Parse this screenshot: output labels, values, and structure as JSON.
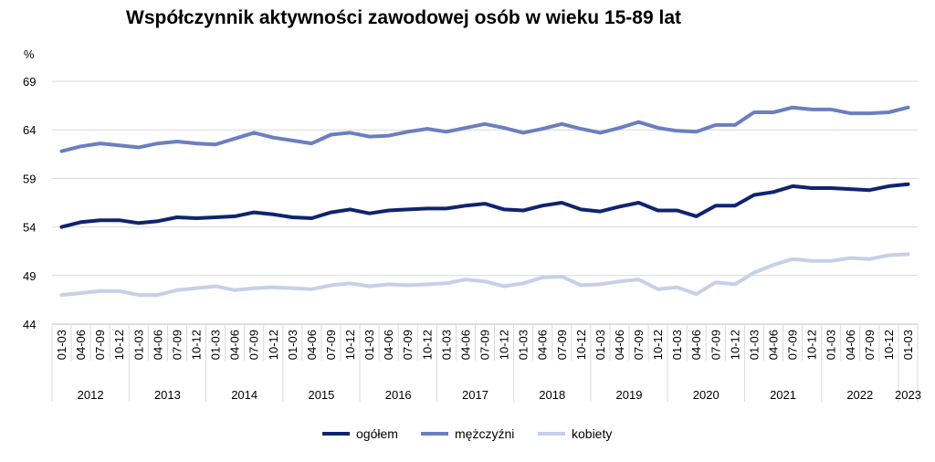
{
  "chart_data": {
    "type": "line",
    "title": "Współczynnik aktywności zawodowej osób w wieku 15-89 lat",
    "ylabel": "%",
    "xlabel": "",
    "ylim": [
      44,
      69
    ],
    "yticks": [
      44,
      49,
      54,
      59,
      64,
      69
    ],
    "grid": "horizontal",
    "legend_position": "bottom",
    "x": [
      "01-03",
      "04-06",
      "07-09",
      "10-12",
      "01-03",
      "04-06",
      "07-09",
      "10-12",
      "01-03",
      "04-06",
      "07-09",
      "10-12",
      "01-03",
      "04-06",
      "07-09",
      "10-12",
      "01-03",
      "04-06",
      "07-09",
      "10-12",
      "01-03",
      "04-06",
      "07-09",
      "10-12",
      "01-03",
      "04-06",
      "07-09",
      "10-12",
      "01-03",
      "04-06",
      "07-09",
      "10-12",
      "01-03",
      "04-06",
      "07-09",
      "10-12",
      "01-03",
      "04-06",
      "07-09",
      "10-12",
      "01-03",
      "04-06",
      "07-09",
      "10-12",
      "01-03"
    ],
    "years": [
      {
        "label": "2012",
        "start": 0,
        "count": 4
      },
      {
        "label": "2013",
        "start": 4,
        "count": 4
      },
      {
        "label": "2014",
        "start": 8,
        "count": 4
      },
      {
        "label": "2015",
        "start": 12,
        "count": 4
      },
      {
        "label": "2016",
        "start": 16,
        "count": 4
      },
      {
        "label": "2017",
        "start": 20,
        "count": 4
      },
      {
        "label": "2018",
        "start": 24,
        "count": 4
      },
      {
        "label": "2019",
        "start": 28,
        "count": 4
      },
      {
        "label": "2020",
        "start": 32,
        "count": 4
      },
      {
        "label": "2021",
        "start": 36,
        "count": 4
      },
      {
        "label": "2022",
        "start": 40,
        "count": 4
      },
      {
        "label": "2023",
        "start": 44,
        "count": 1
      }
    ],
    "series": [
      {
        "name": "ogółem",
        "color": "#0f2470",
        "values": [
          54.0,
          54.5,
          54.7,
          54.7,
          54.4,
          54.6,
          55.0,
          54.9,
          55.0,
          55.1,
          55.5,
          55.3,
          55.0,
          54.9,
          55.5,
          55.8,
          55.4,
          55.7,
          55.8,
          55.9,
          55.9,
          56.2,
          56.4,
          55.8,
          55.7,
          56.2,
          56.5,
          55.8,
          55.6,
          56.1,
          56.5,
          55.7,
          55.7,
          55.1,
          56.2,
          56.2,
          57.3,
          57.6,
          58.2,
          58.0,
          58.0,
          57.9,
          57.8,
          58.2,
          58.4
        ]
      },
      {
        "name": "mężczyźni",
        "color": "#6b7fbf",
        "values": [
          61.8,
          62.3,
          62.6,
          62.4,
          62.2,
          62.6,
          62.8,
          62.6,
          62.5,
          63.1,
          63.7,
          63.2,
          62.9,
          62.6,
          63.5,
          63.7,
          63.3,
          63.4,
          63.8,
          64.1,
          63.8,
          64.2,
          64.6,
          64.2,
          63.7,
          64.1,
          64.6,
          64.1,
          63.7,
          64.2,
          64.8,
          64.2,
          63.9,
          63.8,
          64.5,
          64.5,
          65.8,
          65.8,
          66.3,
          66.1,
          66.1,
          65.7,
          65.7,
          65.8,
          66.3
        ]
      },
      {
        "name": "kobiety",
        "color": "#c8cfe8",
        "values": [
          47.0,
          47.2,
          47.4,
          47.4,
          47.0,
          47.0,
          47.5,
          47.7,
          47.9,
          47.5,
          47.7,
          47.8,
          47.7,
          47.6,
          48.0,
          48.2,
          47.9,
          48.1,
          48.0,
          48.1,
          48.2,
          48.6,
          48.4,
          47.9,
          48.2,
          48.8,
          48.9,
          48.0,
          48.1,
          48.4,
          48.6,
          47.6,
          47.8,
          47.1,
          48.3,
          48.1,
          49.3,
          50.1,
          50.7,
          50.5,
          50.5,
          50.8,
          50.7,
          51.1,
          51.2
        ]
      }
    ]
  }
}
